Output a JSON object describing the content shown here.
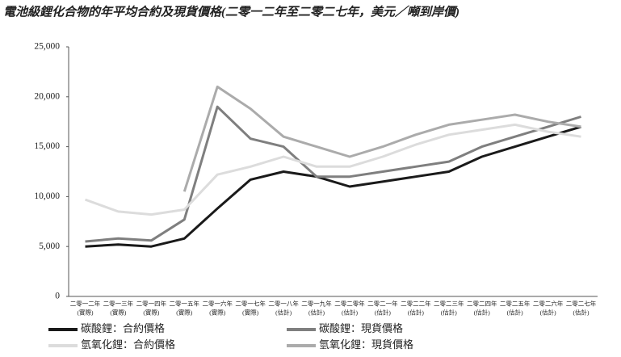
{
  "chart_data": {
    "type": "line",
    "title": "電池級鋰化合物的年平均合約及現貨價格(二零一二年至二零二七年，美元／噸到岸價)",
    "categories": [
      [
        "二零一二年",
        "(實際)"
      ],
      [
        "二零一三年",
        "(實際)"
      ],
      [
        "二零一四年",
        "(實際)"
      ],
      [
        "二零一五年",
        "(實際)"
      ],
      [
        "二零一六年",
        "(實際)"
      ],
      [
        "二零一七年",
        "(實際)"
      ],
      [
        "二零一八年",
        "(估計)"
      ],
      [
        "二零一九年",
        "(估計)"
      ],
      [
        "二零二零年",
        "(估計)"
      ],
      [
        "二零二一年",
        "(估計)"
      ],
      [
        "二零二二年",
        "(估計)"
      ],
      [
        "二零二三年",
        "(估計)"
      ],
      [
        "二零二四年",
        "(估計)"
      ],
      [
        "二零二五年",
        "(估計)"
      ],
      [
        "二零二六年",
        "(估計)"
      ],
      [
        "二零二七年",
        "(估計)"
      ]
    ],
    "series": [
      {
        "name": "碳酸鋰：合約價格",
        "color": "#1a1a1a",
        "values": [
          5000,
          5200,
          5000,
          5800,
          8800,
          11700,
          12500,
          12000,
          11000,
          11500,
          12000,
          12500,
          14000,
          15000,
          16000,
          17000
        ]
      },
      {
        "name": "碳酸鋰：現貨價格",
        "color": "#7f7f7f",
        "values": [
          5500,
          5800,
          5600,
          7700,
          19000,
          15800,
          15000,
          12000,
          12000,
          12500,
          13000,
          13500,
          15000,
          16000,
          17000,
          18000
        ]
      },
      {
        "name": "氫氧化鋰：合約價格",
        "color": "#dcdcdc",
        "values": [
          9700,
          8500,
          8200,
          8700,
          12200,
          13000,
          14000,
          13000,
          13000,
          14000,
          15200,
          16200,
          16700,
          17200,
          16500,
          16000
        ]
      },
      {
        "name": "氫氧化鋰：現貨價格",
        "color": "#ababab",
        "values": [
          null,
          null,
          null,
          10500,
          21000,
          18800,
          16000,
          15000,
          14000,
          15000,
          16200,
          17200,
          17700,
          18200,
          17500,
          17000
        ]
      }
    ],
    "ylim": [
      0,
      25000
    ],
    "yticks": [
      0,
      {
        "value": 5000,
        "label": "5,000"
      },
      {
        "value": 10000,
        "label": "10,000"
      },
      {
        "value": 15000,
        "label": "15,000"
      },
      {
        "value": 20000,
        "label": "20,000"
      },
      {
        "value": 25000,
        "label": "25,000"
      }
    ]
  }
}
